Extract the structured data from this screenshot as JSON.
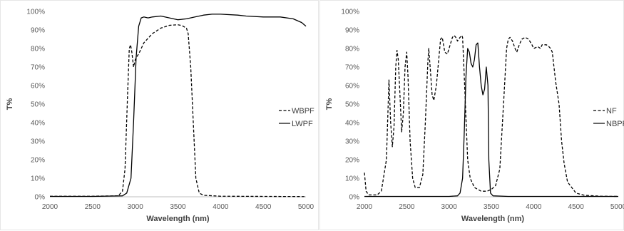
{
  "chart_data": [
    {
      "type": "line",
      "title": "",
      "xlabel": "Wavelength (nm)",
      "ylabel": "T%",
      "xlim": [
        2000,
        5000
      ],
      "ylim": [
        0,
        100
      ],
      "x_ticks": [
        "2000",
        "2500",
        "3000",
        "3500",
        "4000",
        "4500",
        "5000"
      ],
      "y_ticks": [
        "0%",
        "10%",
        "20%",
        "30%",
        "40%",
        "50%",
        "60%",
        "70%",
        "80%",
        "90%",
        "100%"
      ],
      "grid": false,
      "legend_position": "right",
      "series": [
        {
          "name": "WBPF",
          "color": "#000000",
          "dash": "dashed",
          "points": [
            [
              2000,
              0.3
            ],
            [
              2500,
              0.3
            ],
            [
              2800,
              0.5
            ],
            [
              2850,
              3
            ],
            [
              2880,
              15
            ],
            [
              2910,
              55
            ],
            [
              2930,
              80
            ],
            [
              2945,
              82
            ],
            [
              2960,
              78
            ],
            [
              2980,
              70
            ],
            [
              3000,
              74
            ],
            [
              3050,
              78
            ],
            [
              3100,
              83
            ],
            [
              3200,
              88
            ],
            [
              3300,
              91
            ],
            [
              3400,
              92.5
            ],
            [
              3500,
              92.8
            ],
            [
              3550,
              92.3
            ],
            [
              3600,
              91
            ],
            [
              3620,
              88
            ],
            [
              3650,
              70
            ],
            [
              3680,
              40
            ],
            [
              3710,
              10
            ],
            [
              3750,
              2
            ],
            [
              3800,
              0.8
            ],
            [
              4000,
              0.3
            ],
            [
              5000,
              0.1
            ]
          ]
        },
        {
          "name": "LWPF",
          "color": "#000000",
          "dash": "solid",
          "points": [
            [
              2000,
              0.2
            ],
            [
              2500,
              0.2
            ],
            [
              2850,
              0.5
            ],
            [
              2900,
              2
            ],
            [
              2950,
              10
            ],
            [
              2980,
              40
            ],
            [
              3010,
              75
            ],
            [
              3040,
              92
            ],
            [
              3070,
              96.5
            ],
            [
              3100,
              97
            ],
            [
              3150,
              96.5
            ],
            [
              3200,
              97
            ],
            [
              3300,
              97.5
            ],
            [
              3400,
              96.5
            ],
            [
              3500,
              95.5
            ],
            [
              3600,
              96
            ],
            [
              3700,
              97
            ],
            [
              3800,
              98
            ],
            [
              3900,
              98.5
            ],
            [
              4000,
              98.5
            ],
            [
              4200,
              98
            ],
            [
              4300,
              97.5
            ],
            [
              4500,
              97
            ],
            [
              4700,
              97
            ],
            [
              4850,
              96
            ],
            [
              4950,
              94
            ],
            [
              5000,
              92
            ]
          ]
        }
      ]
    },
    {
      "type": "line",
      "title": "",
      "xlabel": "Wavelength (nm)",
      "ylabel": "T%",
      "xlim": [
        2000,
        5000
      ],
      "ylim": [
        0,
        100
      ],
      "x_ticks": [
        "2000",
        "2500",
        "3000",
        "3500",
        "4000",
        "4500",
        "5000"
      ],
      "y_ticks": [
        "0%",
        "10%",
        "20%",
        "30%",
        "40%",
        "50%",
        "60%",
        "70%",
        "80%",
        "90%",
        "100%"
      ],
      "grid": false,
      "legend_position": "right",
      "series": [
        {
          "name": "NF",
          "color": "#000000",
          "dash": "dashed",
          "points": [
            [
              2000,
              13
            ],
            [
              2020,
              3
            ],
            [
              2050,
              1
            ],
            [
              2150,
              1
            ],
            [
              2200,
              3
            ],
            [
              2260,
              20
            ],
            [
              2290,
              63
            ],
            [
              2310,
              40
            ],
            [
              2330,
              27
            ],
            [
              2350,
              38
            ],
            [
              2370,
              70
            ],
            [
              2385,
              79
            ],
            [
              2400,
              74
            ],
            [
              2420,
              55
            ],
            [
              2440,
              35
            ],
            [
              2460,
              45
            ],
            [
              2480,
              70
            ],
            [
              2500,
              78
            ],
            [
              2515,
              65
            ],
            [
              2540,
              30
            ],
            [
              2570,
              10
            ],
            [
              2600,
              5
            ],
            [
              2650,
              5
            ],
            [
              2690,
              12
            ],
            [
              2720,
              40
            ],
            [
              2750,
              73
            ],
            [
              2760,
              80
            ],
            [
              2780,
              68
            ],
            [
              2800,
              55
            ],
            [
              2820,
              52
            ],
            [
              2850,
              60
            ],
            [
              2880,
              75
            ],
            [
              2900,
              85
            ],
            [
              2920,
              86
            ],
            [
              2950,
              78
            ],
            [
              2980,
              77
            ],
            [
              3000,
              80
            ],
            [
              3020,
              83
            ],
            [
              3040,
              86
            ],
            [
              3060,
              87
            ],
            [
              3080,
              86
            ],
            [
              3100,
              84
            ],
            [
              3130,
              86
            ],
            [
              3150,
              87
            ],
            [
              3160,
              86
            ],
            [
              3180,
              65
            ],
            [
              3220,
              20
            ],
            [
              3250,
              10
            ],
            [
              3300,
              5
            ],
            [
              3380,
              3
            ],
            [
              3450,
              3
            ],
            [
              3500,
              4
            ],
            [
              3550,
              6
            ],
            [
              3600,
              15
            ],
            [
              3650,
              55
            ],
            [
              3680,
              80
            ],
            [
              3700,
              85
            ],
            [
              3720,
              86
            ],
            [
              3750,
              84
            ],
            [
              3780,
              80
            ],
            [
              3800,
              78
            ],
            [
              3830,
              82
            ],
            [
              3860,
              85
            ],
            [
              3900,
              86
            ],
            [
              3940,
              85
            ],
            [
              3980,
              82
            ],
            [
              4000,
              80
            ],
            [
              4050,
              81
            ],
            [
              4080,
              80
            ],
            [
              4100,
              82
            ],
            [
              4150,
              82
            ],
            [
              4180,
              81
            ],
            [
              4200,
              80
            ],
            [
              4220,
              78
            ],
            [
              4260,
              62
            ],
            [
              4300,
              50
            ],
            [
              4330,
              30
            ],
            [
              4360,
              18
            ],
            [
              4400,
              8
            ],
            [
              4500,
              2
            ],
            [
              4600,
              0.8
            ],
            [
              4800,
              0.3
            ],
            [
              5000,
              0.2
            ]
          ]
        },
        {
          "name": "NBPF",
          "color": "#000000",
          "dash": "solid",
          "points": [
            [
              2000,
              0.2
            ],
            [
              2500,
              0.2
            ],
            [
              3000,
              0.2
            ],
            [
              3100,
              0.5
            ],
            [
              3130,
              2
            ],
            [
              3160,
              10
            ],
            [
              3180,
              35
            ],
            [
              3200,
              65
            ],
            [
              3220,
              80
            ],
            [
              3240,
              78
            ],
            [
              3260,
              72
            ],
            [
              3280,
              70
            ],
            [
              3300,
              74
            ],
            [
              3320,
              82
            ],
            [
              3340,
              83
            ],
            [
              3360,
              70
            ],
            [
              3380,
              60
            ],
            [
              3400,
              55
            ],
            [
              3420,
              58
            ],
            [
              3440,
              70
            ],
            [
              3460,
              60
            ],
            [
              3470,
              20
            ],
            [
              3490,
              2
            ],
            [
              3520,
              0.5
            ],
            [
              3700,
              0.2
            ],
            [
              4000,
              0.2
            ],
            [
              5000,
              0.2
            ]
          ]
        }
      ]
    }
  ]
}
